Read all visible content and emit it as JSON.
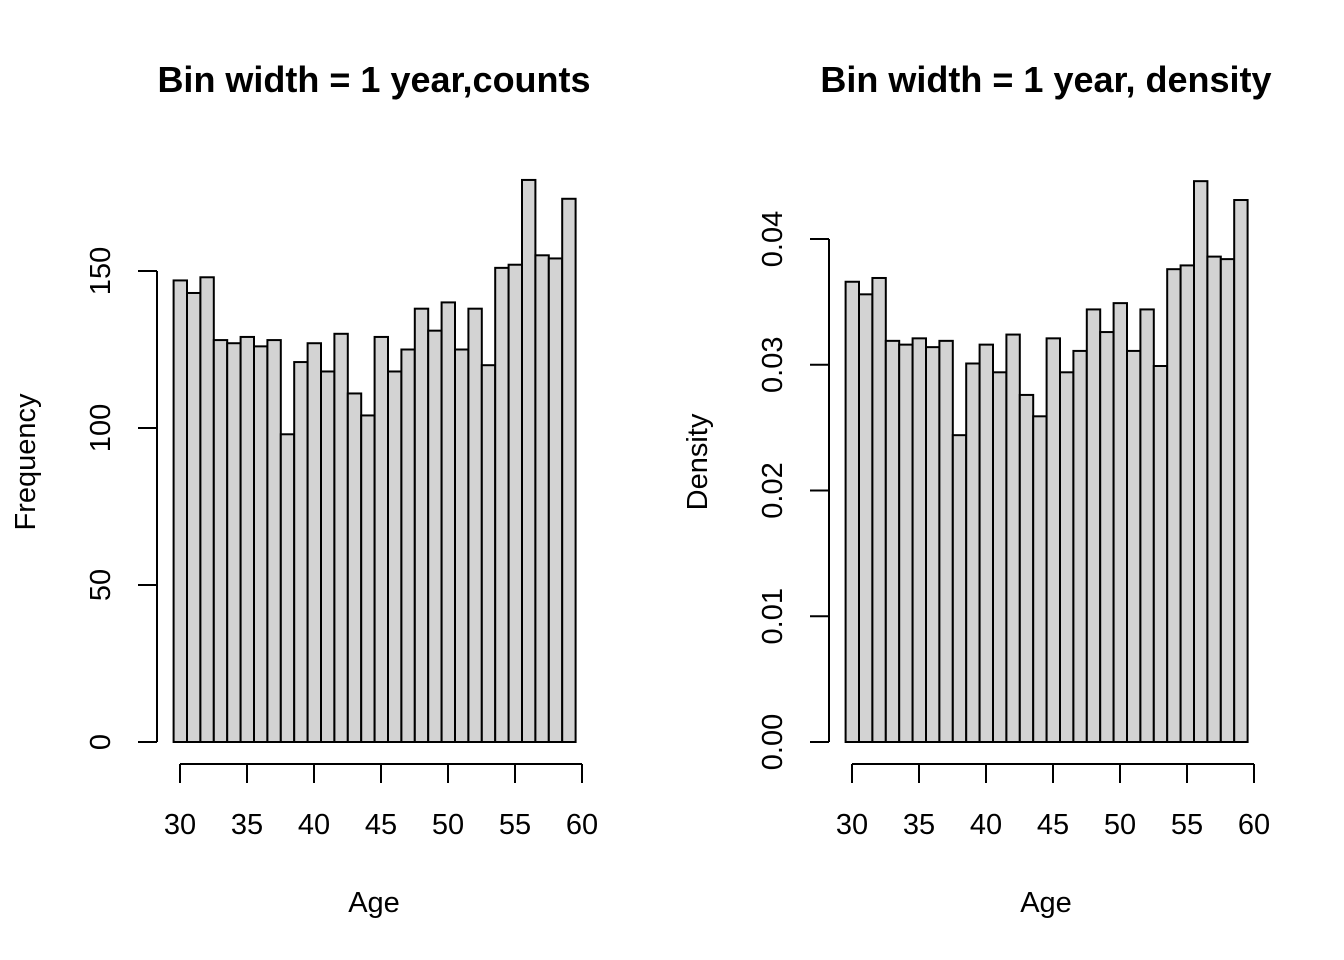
{
  "chart_data": [
    {
      "type": "bar",
      "title": "Bin width = 1 year,counts",
      "xlabel": "Age",
      "ylabel": "Frequency",
      "x_bin_starts": [
        29,
        30,
        31,
        32,
        33,
        34,
        35,
        36,
        37,
        38,
        39,
        40,
        41,
        42,
        43,
        44,
        45,
        46,
        47,
        48,
        49,
        50,
        51,
        52,
        53,
        54,
        55,
        56,
        57,
        58
      ],
      "values": [
        147,
        143,
        148,
        128,
        127,
        129,
        126,
        128,
        98,
        121,
        127,
        118,
        130,
        111,
        104,
        129,
        118,
        125,
        138,
        131,
        140,
        125,
        138,
        120,
        151,
        152,
        179,
        155,
        154,
        173
      ],
      "xlim": [
        30,
        60
      ],
      "ylim": [
        0,
        150
      ],
      "x_ticks": [
        30,
        35,
        40,
        45,
        50,
        55,
        60
      ],
      "y_ticks": [
        0,
        50,
        100,
        150
      ],
      "x_tick_labels": [
        "30",
        "35",
        "40",
        "45",
        "50",
        "55",
        "60"
      ],
      "y_tick_labels": [
        "0",
        "50",
        "100",
        "150"
      ]
    },
    {
      "type": "bar",
      "title": "Bin width = 1 year, density",
      "xlabel": "Age",
      "ylabel": "Density",
      "x_bin_starts": [
        29,
        30,
        31,
        32,
        33,
        34,
        35,
        36,
        37,
        38,
        39,
        40,
        41,
        42,
        43,
        44,
        45,
        46,
        47,
        48,
        49,
        50,
        51,
        52,
        53,
        54,
        55,
        56,
        57,
        58
      ],
      "values": [
        0.0366,
        0.0356,
        0.0369,
        0.0319,
        0.0316,
        0.0321,
        0.0314,
        0.0319,
        0.0244,
        0.0301,
        0.0316,
        0.0294,
        0.0324,
        0.0276,
        0.0259,
        0.0321,
        0.0294,
        0.0311,
        0.0344,
        0.0326,
        0.0349,
        0.0311,
        0.0344,
        0.0299,
        0.0376,
        0.0379,
        0.0446,
        0.0386,
        0.0384,
        0.0431
      ],
      "xlim": [
        30,
        60
      ],
      "ylim": [
        0,
        0.04
      ],
      "x_ticks": [
        30,
        35,
        40,
        45,
        50,
        55,
        60
      ],
      "y_ticks": [
        0,
        0.01,
        0.02,
        0.03,
        0.04
      ],
      "x_tick_labels": [
        "30",
        "35",
        "40",
        "45",
        "50",
        "55",
        "60"
      ],
      "y_tick_labels": [
        "0.00",
        "0.01",
        "0.02",
        "0.03",
        "0.04"
      ]
    }
  ]
}
